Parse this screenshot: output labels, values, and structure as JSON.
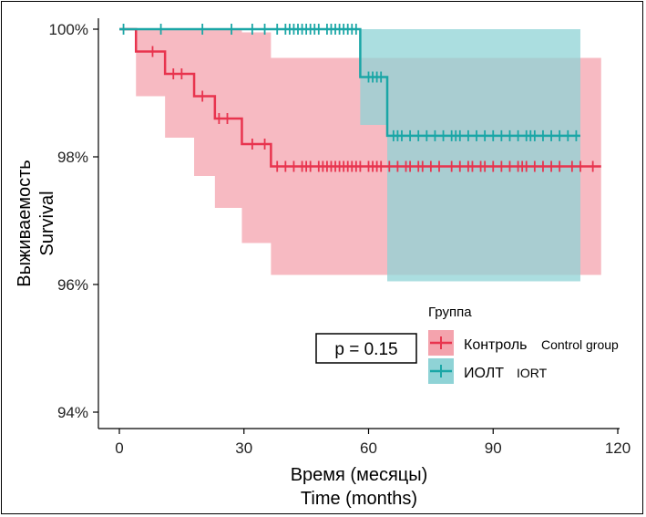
{
  "chart_data": {
    "type": "line",
    "subtype": "kaplan-meier",
    "xlabel": "Время (месяцы)",
    "xlabel_en": "Time (months)",
    "ylabel": "Выживаемость",
    "ylabel_en": "Survival",
    "xlim": [
      0,
      120
    ],
    "ylim": [
      94,
      100
    ],
    "x_ticks": [
      0,
      30,
      60,
      90,
      120
    ],
    "y_ticks": [
      94,
      96,
      98,
      100
    ],
    "y_tick_labels": [
      "94%",
      "96%",
      "98%",
      "100%"
    ],
    "grid": false,
    "annotation": "p = 0.15",
    "legend": {
      "title": "Группа",
      "placement": "bottom-right"
    },
    "series": [
      {
        "name": "Контроль",
        "name_en": "Control group",
        "color": "#e8344e",
        "ci_color": "#f4a3ad",
        "steps": [
          [
            0,
            100
          ],
          [
            4,
            99.65
          ],
          [
            11,
            99.3
          ],
          [
            18,
            98.95
          ],
          [
            23,
            98.6
          ],
          [
            29.5,
            98.2
          ],
          [
            36.5,
            97.85
          ],
          [
            116,
            97.85
          ]
        ],
        "ci_lower": [
          [
            0,
            100
          ],
          [
            4,
            98.95
          ],
          [
            11,
            98.3
          ],
          [
            18,
            97.7
          ],
          [
            23,
            97.2
          ],
          [
            29.5,
            96.65
          ],
          [
            36.5,
            96.15
          ],
          [
            116,
            96.15
          ]
        ],
        "ci_upper": [
          [
            0,
            100
          ],
          [
            29.5,
            99.95
          ],
          [
            36.5,
            99.55
          ],
          [
            116,
            99.55
          ]
        ],
        "censor_x": [
          8,
          13,
          15,
          20,
          24,
          26,
          32,
          35,
          38,
          40,
          42,
          44,
          45,
          46,
          48,
          49,
          50,
          51,
          52,
          53,
          54,
          55,
          56,
          57,
          58,
          60,
          61,
          62,
          63,
          65,
          67,
          69,
          70,
          72,
          73,
          75,
          77,
          80,
          82,
          84,
          85,
          87,
          88,
          90,
          92,
          94,
          96,
          97,
          98,
          100,
          102,
          104,
          106,
          109,
          111,
          114
        ]
      },
      {
        "name": "ИОЛТ",
        "name_en": "IORT",
        "color": "#1aa6a6",
        "ci_color": "#8fd3d6",
        "steps": [
          [
            0,
            100
          ],
          [
            58,
            99.25
          ],
          [
            64.5,
            98.33
          ],
          [
            111,
            98.33
          ]
        ],
        "ci_lower": [
          [
            0,
            100
          ],
          [
            58,
            98.5
          ],
          [
            64.5,
            96.05
          ],
          [
            111,
            96.05
          ]
        ],
        "ci_upper": [
          [
            0,
            100
          ],
          [
            111,
            100
          ]
        ],
        "censor_x": [
          1,
          10,
          20,
          27,
          32,
          35,
          38,
          40,
          41,
          42,
          43,
          44,
          45,
          46,
          47,
          48,
          50,
          51,
          52,
          53,
          54,
          55,
          56,
          57,
          60,
          61,
          62,
          63,
          66,
          67,
          68,
          70,
          72,
          74,
          76,
          78,
          80,
          81,
          82,
          84,
          86,
          88,
          90,
          92,
          94,
          96,
          98,
          99,
          100,
          102,
          104,
          106,
          108,
          110
        ]
      }
    ]
  }
}
